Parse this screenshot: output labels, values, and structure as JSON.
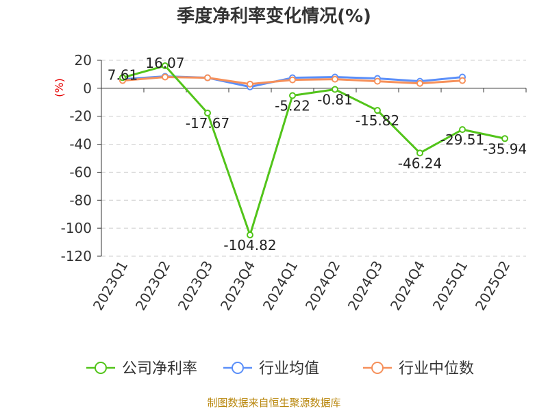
{
  "title": "季度净利率变化情况(%)",
  "source": "制图数据来自恒生聚源数据库",
  "chart_data": {
    "type": "line",
    "title": "季度净利率变化情况(%)",
    "ylabel": "(%)",
    "xlabel": "",
    "ylim": [
      -120,
      20
    ],
    "yticks": [
      20,
      0,
      -20,
      -40,
      -60,
      -80,
      -100,
      -120
    ],
    "grid": true,
    "legend_position": "bottom",
    "categories": [
      "2023Q1",
      "2023Q2",
      "2023Q3",
      "2023Q4",
      "2024Q1",
      "2024Q2",
      "2024Q3",
      "2024Q4",
      "2025Q1",
      "2025Q2"
    ],
    "series": [
      {
        "name": "公司净利率",
        "color": "#52c41a",
        "values": [
          7.61,
          16.07,
          -17.67,
          -104.82,
          -5.22,
          -0.81,
          -15.82,
          -46.24,
          -29.51,
          -35.94
        ],
        "labels": [
          "7.61",
          "16.07",
          "-17.67",
          "-104.82",
          "-5.22",
          "-0.81",
          "-15.82",
          "-46.24",
          "-29.51",
          "-35.94"
        ]
      },
      {
        "name": "行业均值",
        "color": "#5b8ff9",
        "values": [
          6.5,
          8.5,
          7.5,
          1.0,
          7.5,
          8.0,
          7.0,
          5.0,
          8.0,
          null
        ]
      },
      {
        "name": "行业中位数",
        "color": "#f6905a",
        "values": [
          5.5,
          8.0,
          7.5,
          3.0,
          6.0,
          6.5,
          5.0,
          3.5,
          5.5,
          null
        ]
      }
    ]
  }
}
